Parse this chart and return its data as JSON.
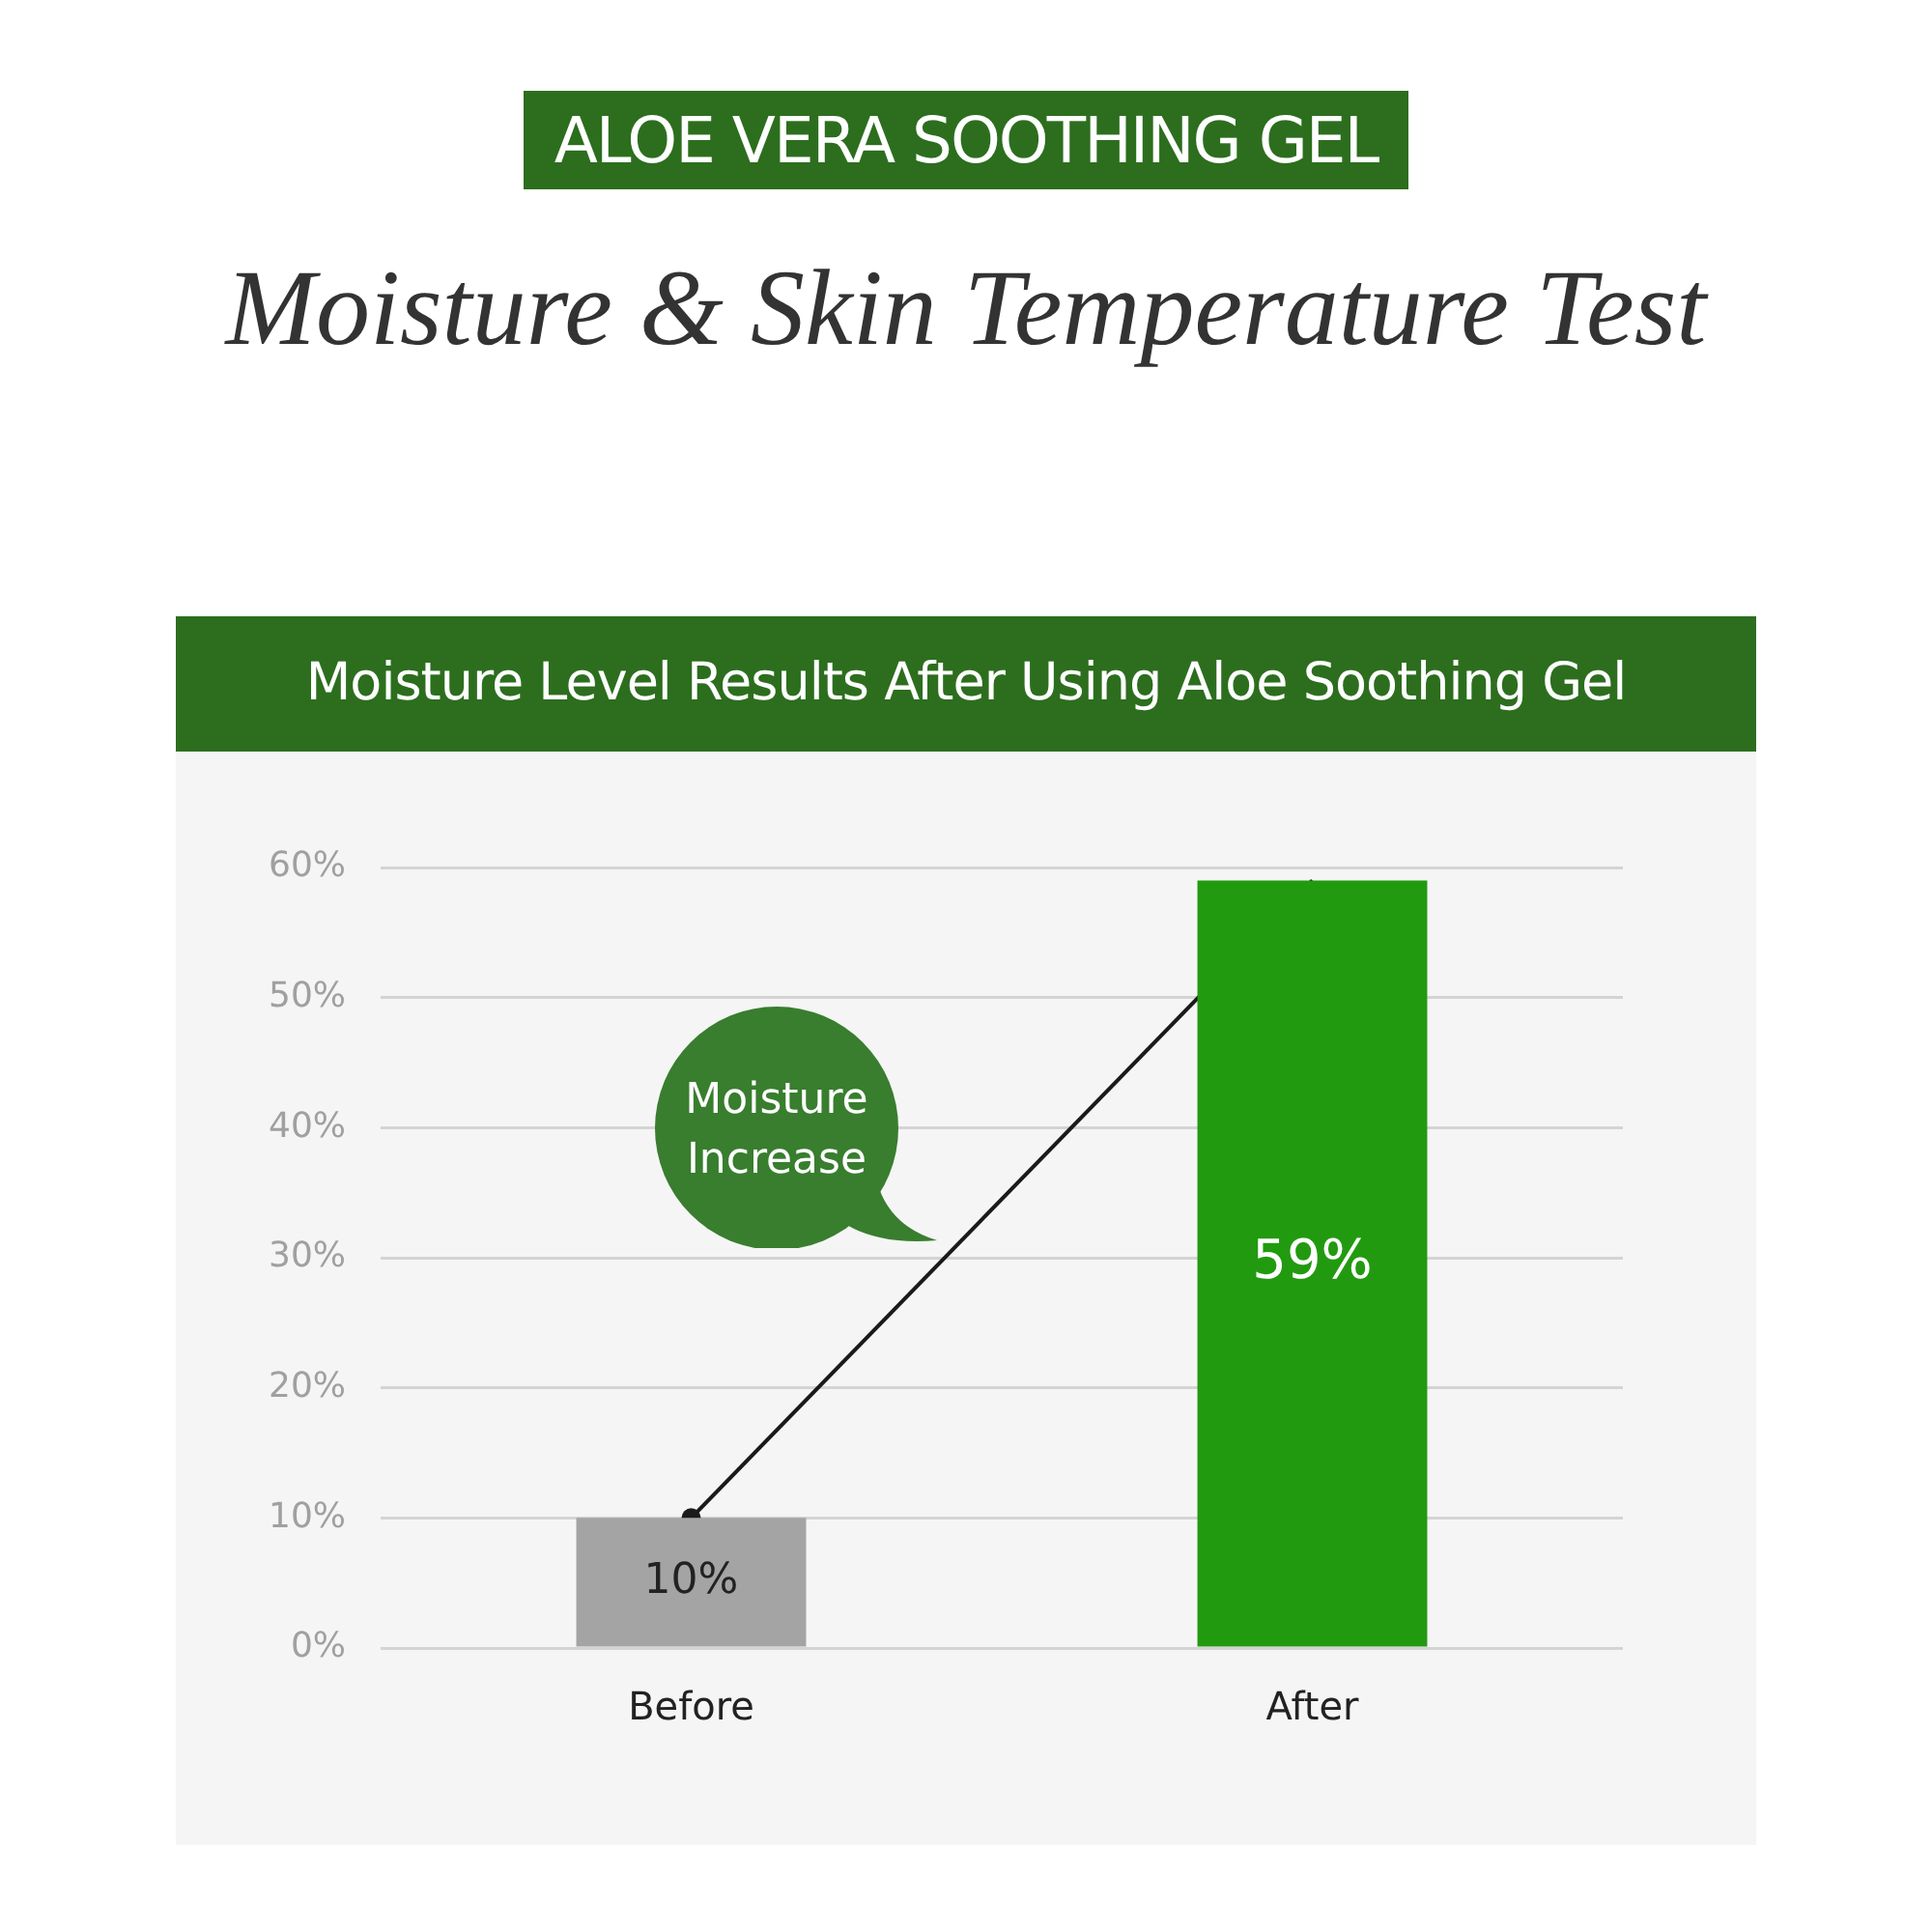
{
  "chart_data": {
    "type": "bar",
    "title": "Moisture & Skin Temperature Test",
    "subtitle": "Moisture Level Results After Using Aloe Soothing Gel",
    "annotations": [
      "ALOE VERA SOOTHING GEL",
      "Moisture Increase"
    ],
    "categories": [
      "Before",
      "After"
    ],
    "values": [
      10,
      59
    ],
    "colors": [
      "#a4a4a4",
      "#229a10"
    ],
    "value_labels": [
      "10%",
      "59%"
    ],
    "ylim": [
      0,
      60
    ],
    "yticks": [
      {
        "value": 0,
        "label": "0%"
      },
      {
        "value": 10,
        "label": "10%"
      },
      {
        "value": 20,
        "label": "20%"
      },
      {
        "value": 30,
        "label": "30%"
      },
      {
        "value": 40,
        "label": "40%"
      },
      {
        "value": 50,
        "label": "50%"
      },
      {
        "value": 60,
        "label": "60%"
      }
    ],
    "grid": "y",
    "legend": false
  }
}
